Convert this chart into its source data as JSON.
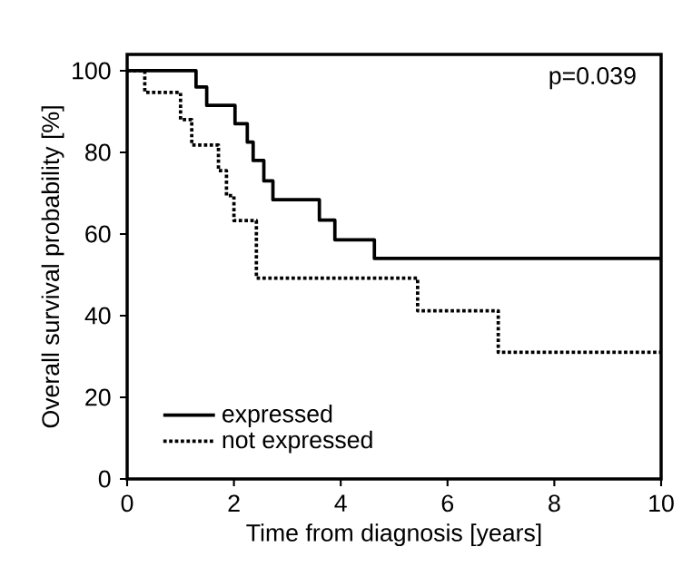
{
  "chart_data": {
    "type": "step",
    "xlabel": "Time from diagnosis [years]",
    "ylabel": "Overall survival probability [%]",
    "xlim": [
      0,
      10
    ],
    "ylim": [
      0,
      104
    ],
    "xticks": [
      0,
      2,
      4,
      6,
      8,
      10
    ],
    "yticks": [
      0,
      20,
      40,
      60,
      80,
      100
    ],
    "legend": "bottom left",
    "grid": false,
    "annotations": [
      "p=0.039"
    ],
    "series": [
      {
        "name": "expressed",
        "color": "#000000",
        "line_style": "solid",
        "x": [
          0,
          1.29,
          1.49,
          2.02,
          2.25,
          2.36,
          2.56,
          2.73,
          3.6,
          3.89,
          4.63,
          10
        ],
        "values": [
          100,
          96,
          91.5,
          87,
          82.5,
          78,
          73,
          68.4,
          63.4,
          58.6,
          54,
          54
        ]
      },
      {
        "name": "not expressed",
        "color": "#000000",
        "line_style": "dotted",
        "x": [
          0,
          0.33,
          1.0,
          1.21,
          1.71,
          1.86,
          2.0,
          2.42,
          5.44,
          6.95,
          10
        ],
        "values": [
          100,
          94.7,
          88,
          81.8,
          75.5,
          69.4,
          63.3,
          49.2,
          41.2,
          31,
          31
        ]
      }
    ]
  }
}
